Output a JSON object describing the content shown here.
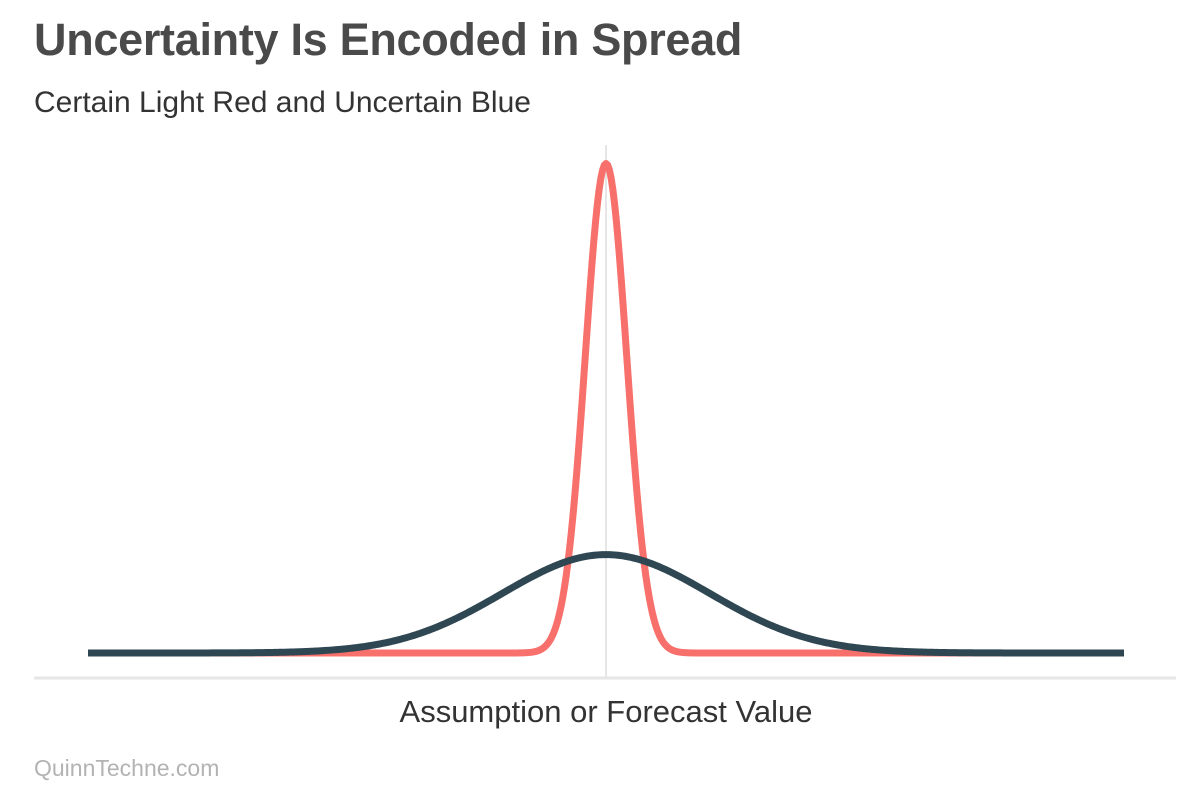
{
  "title": "Uncertainty Is Encoded in Spread",
  "subtitle": "Certain Light Red and Uncertain Blue",
  "source": "QuinnTechne.com",
  "colors": {
    "certain": "#f8706b",
    "uncertain": "#2f4753",
    "axis": "#e6e6e6",
    "title": "#4a4a4a",
    "text": "#333333",
    "source": "#b3b3b3"
  },
  "chart_data": {
    "type": "line",
    "title": "Uncertainty Is Encoded in Spread",
    "subtitle": "Certain Light Red and Uncertain Blue",
    "xlabel": "Assumption or Forecast Value",
    "ylabel": "",
    "xlim": [
      -5,
      5
    ],
    "ylim": [
      0,
      2.1
    ],
    "center_line_x": 0,
    "grid": false,
    "legend": "none",
    "series": [
      {
        "key": "certain",
        "description": "normal density, narrow spread",
        "mean": 0,
        "sd": 0.2,
        "peak": 1.99
      },
      {
        "key": "uncertain",
        "description": "normal density, wide spread",
        "mean": 0,
        "sd": 1,
        "peak": 0.4
      }
    ]
  }
}
